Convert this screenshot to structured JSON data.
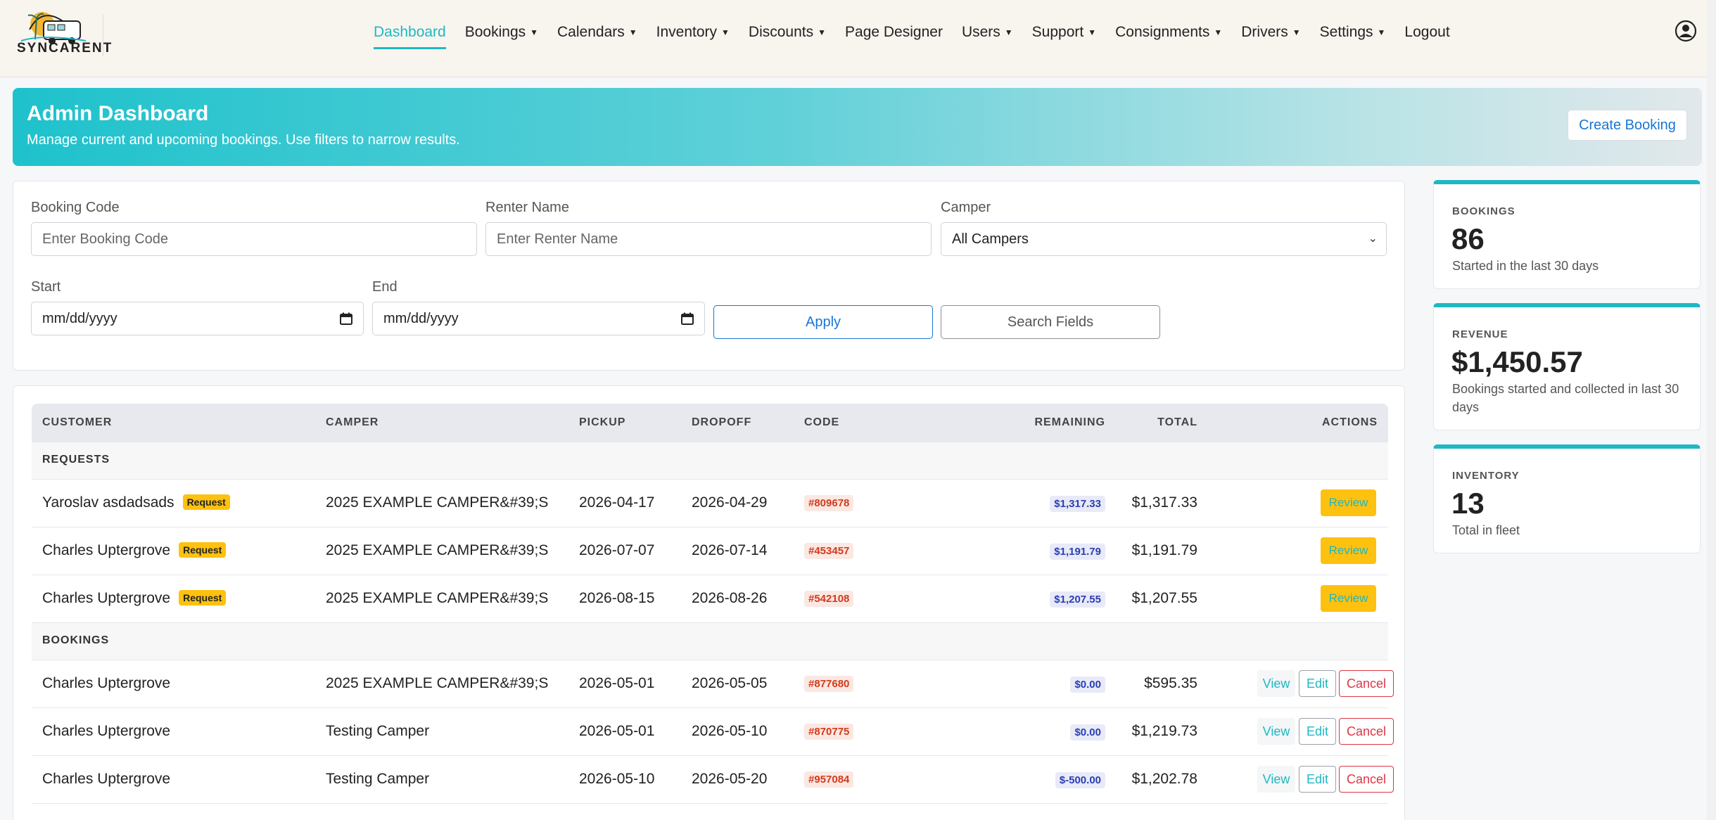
{
  "brand": {
    "name": "SYNCARENT"
  },
  "nav": {
    "items": [
      {
        "label": "Dashboard",
        "caret": false,
        "active": true
      },
      {
        "label": "Bookings",
        "caret": true
      },
      {
        "label": "Calendars",
        "caret": true
      },
      {
        "label": "Inventory",
        "caret": true
      },
      {
        "label": "Discounts",
        "caret": true
      },
      {
        "label": "Page Designer",
        "caret": false
      },
      {
        "label": "Users",
        "caret": true
      },
      {
        "label": "Support",
        "caret": true
      },
      {
        "label": "Consignments",
        "caret": true
      },
      {
        "label": "Drivers",
        "caret": true
      },
      {
        "label": "Settings",
        "caret": true
      },
      {
        "label": "Logout",
        "caret": false
      }
    ],
    "user_icon": "user-circle-icon"
  },
  "hero": {
    "title": "Admin Dashboard",
    "subtitle": "Manage current and upcoming bookings. Use filters to narrow results.",
    "create_label": "Create Booking"
  },
  "filters": {
    "booking_code": {
      "label": "Booking Code",
      "placeholder": "Enter Booking Code"
    },
    "renter_name": {
      "label": "Renter Name",
      "placeholder": "Enter Renter Name"
    },
    "camper": {
      "label": "Camper",
      "value": "All Campers"
    },
    "start": {
      "label": "Start",
      "placeholder": "mm/dd/yyyy"
    },
    "end": {
      "label": "End",
      "placeholder": "mm/dd/yyyy"
    },
    "apply_label": "Apply",
    "search_label": "Search Fields"
  },
  "table": {
    "columns": {
      "customer": "CUSTOMER",
      "camper": "CAMPER",
      "pickup": "PICKUP",
      "dropoff": "DROPOFF",
      "code": "CODE",
      "remaining": "REMAINING",
      "total": "TOTAL",
      "actions": "ACTIONS"
    },
    "requests_heading": "REQUESTS",
    "bookings_heading": "BOOKINGS",
    "request_badge": "Request",
    "review_label": "Review",
    "view_label": "View",
    "edit_label": "Edit",
    "cancel_label": "Cancel",
    "requests": [
      {
        "customer": "Yaroslav asdadsads",
        "camper": "2025 EXAMPLE CAMPER&#39;S",
        "pickup": "2026-04-17",
        "dropoff": "2026-04-29",
        "code": "#809678",
        "remaining": "$1,317.33",
        "total": "$1,317.33"
      },
      {
        "customer": "Charles Uptergrove",
        "camper": "2025 EXAMPLE CAMPER&#39;S",
        "pickup": "2026-07-07",
        "dropoff": "2026-07-14",
        "code": "#453457",
        "remaining": "$1,191.79",
        "total": "$1,191.79"
      },
      {
        "customer": "Charles Uptergrove",
        "camper": "2025 EXAMPLE CAMPER&#39;S",
        "pickup": "2026-08-15",
        "dropoff": "2026-08-26",
        "code": "#542108",
        "remaining": "$1,207.55",
        "total": "$1,207.55"
      }
    ],
    "bookings": [
      {
        "customer": "Charles Uptergrove",
        "camper": "2025 EXAMPLE CAMPER&#39;S",
        "pickup": "2026-05-01",
        "dropoff": "2026-05-05",
        "code": "#877680",
        "remaining": "$0.00",
        "total": "$595.35"
      },
      {
        "customer": "Charles Uptergrove",
        "camper": "Testing Camper",
        "pickup": "2026-05-01",
        "dropoff": "2026-05-10",
        "code": "#870775",
        "remaining": "$0.00",
        "total": "$1,219.73"
      },
      {
        "customer": "Charles Uptergrove",
        "camper": "Testing Camper",
        "pickup": "2026-05-10",
        "dropoff": "2026-05-20",
        "code": "#957084",
        "remaining": "$-500.00",
        "total": "$1,202.78"
      }
    ]
  },
  "stats": {
    "bookings": {
      "label": "BOOKINGS",
      "value": "86",
      "note": "Started in the last 30 days"
    },
    "revenue": {
      "label": "REVENUE",
      "value": "$1,450.57",
      "note": "Bookings started and collected in last 30 days"
    },
    "inventory": {
      "label": "INVENTORY",
      "value": "13",
      "note": "Total in fleet"
    }
  },
  "colors": {
    "accent": "#1fb8c3",
    "warning": "#ffc10f",
    "danger": "#dc3545",
    "link": "#1976d2"
  }
}
